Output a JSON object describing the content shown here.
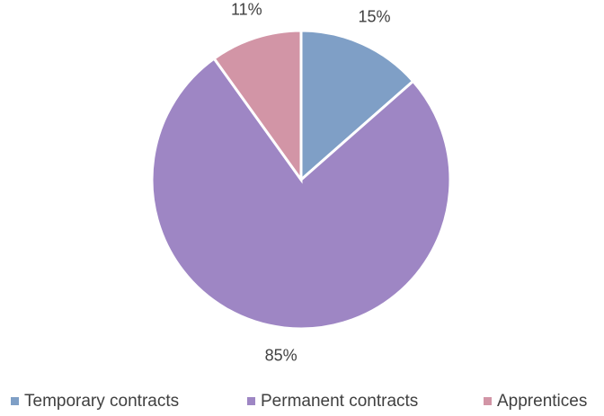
{
  "chart_data": {
    "type": "pie",
    "categories": [
      "Temporary contracts",
      "Permanent contracts",
      "Apprentices"
    ],
    "values": [
      15,
      85,
      11
    ],
    "value_labels": [
      "15%",
      "85%",
      "11%"
    ],
    "colors": [
      "#7f9fc6",
      "#9e86c4",
      "#d295a6"
    ],
    "legend": "bottom"
  }
}
